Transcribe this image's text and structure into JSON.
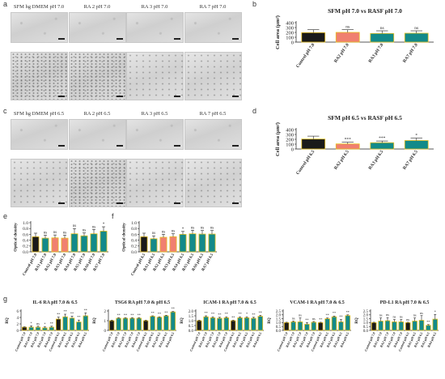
{
  "panel_letters": [
    "a",
    "b",
    "c",
    "d",
    "e",
    "f",
    "g"
  ],
  "row_a_headers": [
    "SFM hg DMEM pH 7.0",
    "RA 2 pH 7.0",
    "RA 3 pH 7.0",
    "RA 7 pH 7.0"
  ],
  "row_c_headers": [
    "SFM hg DMEM pH 6.5",
    "RA 2 pH 6.5",
    "RA 3 pH 6.5",
    "RA 7 pH 6.5"
  ],
  "colors": {
    "control": "#1a1a1a",
    "ra2": "#f08070",
    "teal": "#138a8a",
    "yellow": "#e8c020"
  },
  "chart_data": [
    {
      "id": "b",
      "type": "bar",
      "title": "SFM pH 7.0 vs RASF pH 7.0",
      "categories": [
        "Control pH 7.0",
        "RA2 pH 7.0",
        "RA3 pH 7.0",
        "RA7 pH 7.0"
      ],
      "values": [
        195,
        200,
        178,
        183
      ],
      "errors": [
        60,
        55,
        55,
        50
      ],
      "sig": [
        "",
        "ns",
        "ns",
        "ns"
      ],
      "ylabel": "Cell area (μm²)",
      "yticks": [
        "0",
        "100",
        "200",
        "300",
        "400"
      ],
      "ylim": [
        0,
        400
      ]
    },
    {
      "id": "d",
      "type": "bar",
      "title": "SFM pH 6.5 vs RASF pH 6.5",
      "categories": [
        "Control pH 6.5",
        "RA2 pH 6.5",
        "RA3 pH 6.5",
        "RA7 pH 6.5"
      ],
      "values": [
        205,
        105,
        130,
        175
      ],
      "errors": [
        60,
        35,
        35,
        50
      ],
      "sig": [
        "",
        "***",
        "***",
        "*"
      ],
      "ylabel": "Cell area (μm²)",
      "yticks": [
        "0",
        "100",
        "200",
        "300",
        "400"
      ],
      "ylim": [
        0,
        400
      ]
    },
    {
      "id": "e",
      "type": "bar",
      "categories": [
        "Control pH 7.0",
        "RA1 pH 7.0",
        "RA2 pH 7.0",
        "RA3 pH 7.0",
        "RA4 pH 7.0",
        "RA5 pH 7.0",
        "RA6 pH 7.0",
        "RA7 pH 7.0"
      ],
      "values": [
        0.52,
        0.47,
        0.48,
        0.47,
        0.62,
        0.55,
        0.62,
        0.71
      ],
      "errors": [
        0.12,
        0.1,
        0.1,
        0.1,
        0.18,
        0.1,
        0.15,
        0.15
      ],
      "sig": [
        "",
        "ns",
        "ns",
        "ns",
        "ns",
        "ns",
        "ns",
        "*"
      ],
      "ylabel": "Optical density",
      "yticks": [
        "0.0",
        "0.2",
        "0.4",
        "0.6",
        "0.8",
        "1.0"
      ],
      "ylim": [
        0,
        1.0
      ]
    },
    {
      "id": "f",
      "type": "bar",
      "categories": [
        "Control pH 6.5",
        "RA1 pH 6.5",
        "RA2 pH 6.5",
        "RA3 pH 6.5",
        "RA4 pH 6.5",
        "RA5 pH 6.5",
        "RA6 pH 6.5",
        "RA7 pH 6.5"
      ],
      "values": [
        0.52,
        0.45,
        0.5,
        0.52,
        0.6,
        0.62,
        0.61,
        0.61
      ],
      "errors": [
        0.12,
        0.1,
        0.1,
        0.1,
        0.1,
        0.12,
        0.12,
        0.12
      ],
      "sig": [
        "",
        "ns",
        "ns",
        "ns",
        "*",
        "ns",
        "ns",
        "ns"
      ],
      "ylabel": "Optical density",
      "yticks": [
        "0.0",
        "0.2",
        "0.4",
        "0.6",
        "0.8",
        "1.0"
      ],
      "ylim": [
        0,
        1.0
      ]
    },
    {
      "id": "g1",
      "type": "bar",
      "title": "IL-6 RA pH 7.0 & 6.5",
      "ylabel": "RQ",
      "yticks": [
        "0",
        "2",
        "4",
        "6"
      ],
      "ylim": [
        0,
        6
      ],
      "categories": [
        "Control pH 7.0",
        "RA1 pH 7.0",
        "RA2 pH 7.0",
        "RA3 pH 7.0",
        "RA4 pH 7.0",
        "Control pH 6.5",
        "RA1 pH 6.5",
        "RA2 pH 6.5",
        "RA3 pH 6.5",
        "RA4 pH 6.5"
      ],
      "values": [
        1.0,
        1.0,
        1.0,
        0.8,
        1.0,
        3.5,
        4.2,
        3.8,
        2.6,
        4.5
      ],
      "errors": [
        0.1,
        0.4,
        0.3,
        0.3,
        0.3,
        0.6,
        0.8,
        0.6,
        0.6,
        0.9
      ],
      "sig": [
        "",
        "*",
        "ns",
        "*",
        "**",
        "**",
        "**",
        "**",
        "**",
        "**"
      ]
    },
    {
      "id": "g2",
      "type": "bar",
      "title": "TSG6 RA pH 7.0 & pH 6.5",
      "ylabel": "RQ",
      "yticks": [
        "0",
        "1",
        "2"
      ],
      "ylim": [
        0,
        2
      ],
      "categories": [
        "Control pH 7.0",
        "RA1 pH 7.0",
        "RA2 pH 7.0",
        "RA3 pH 7.0",
        "RA4 pH 7.0",
        "Control pH 6.5",
        "RA1 pH 6.5",
        "RA2 pH 6.5",
        "RA3 pH 6.5",
        "RA4 pH 6.5"
      ],
      "values": [
        1.0,
        1.25,
        1.25,
        1.25,
        1.25,
        1.0,
        1.45,
        1.35,
        1.5,
        1.9
      ],
      "errors": [
        0.05,
        0.05,
        0.05,
        0.05,
        0.05,
        0.05,
        0.05,
        0.05,
        0.05,
        0.05
      ],
      "sig": [
        "",
        "**",
        "**",
        "**",
        "**",
        "",
        "**",
        "**",
        "**",
        "**"
      ]
    },
    {
      "id": "g3",
      "type": "bar",
      "title": "ICAM-1 RA pH 7.0 & 6.5",
      "ylabel": "RQ",
      "yticks": [
        "0.0",
        "0.5",
        "1.0",
        "1.5",
        "2.0"
      ],
      "ylim": [
        0,
        2
      ],
      "categories": [
        "Control pH 7.0",
        "RA1 pH 7.0",
        "RA2 pH 7.0",
        "RA3 pH 7.0",
        "RA4 pH 7.0",
        "Control pH 6.5",
        "RA1 pH 6.5",
        "RA2 pH 6.5",
        "RA3 pH 6.5",
        "RA4 pH 6.5"
      ],
      "values": [
        1.0,
        1.4,
        1.3,
        1.25,
        1.3,
        1.0,
        1.3,
        1.3,
        1.25,
        1.45
      ],
      "errors": [
        0.05,
        0.1,
        0.1,
        0.1,
        0.1,
        0.05,
        0.1,
        0.1,
        0.1,
        0.1
      ],
      "sig": [
        "",
        "**",
        "**",
        "**",
        "**",
        "**",
        "**",
        "*",
        "**",
        "**"
      ]
    },
    {
      "id": "g4",
      "type": "bar",
      "title": "VCAM-1 RA pH 7.0 & 6.5",
      "ylabel": "RQ",
      "yticks": [
        "0.0",
        "0.5",
        "1.0",
        "1.5",
        "2.0",
        "2.5"
      ],
      "ylim": [
        0,
        2.5
      ],
      "categories": [
        "Control pH 7.0",
        "RA1 pH 7.0",
        "RA2 pH 7.0",
        "RA3 pH 7.0",
        "RA4 pH 7.0",
        "Control pH 6.5",
        "RA1 pH 6.5",
        "RA2 pH 6.5",
        "RA3 pH 6.5",
        "RA4 pH 6.5"
      ],
      "values": [
        1.0,
        1.1,
        1.1,
        0.8,
        1.05,
        1.0,
        1.5,
        1.75,
        1.1,
        1.9
      ],
      "errors": [
        0.05,
        0.1,
        0.5,
        0.2,
        0.1,
        0.05,
        0.1,
        0.1,
        0.3,
        0.1
      ],
      "sig": [
        "",
        "ns",
        "ns",
        "**",
        "ns",
        "**",
        "**",
        "**",
        "**",
        "**"
      ]
    },
    {
      "id": "g5",
      "type": "bar",
      "title": "PD-L1 RA pH 7.0 & 6.5",
      "ylabel": "RQ",
      "yticks": [
        "0.0",
        "0.5",
        "1.0",
        "1.5",
        "2.0",
        "2.5"
      ],
      "ylim": [
        0,
        2.5
      ],
      "categories": [
        "Control pH 7.0",
        "RA1 pH 7.0",
        "RA2 pH 7.0",
        "RA3 pH 7.0",
        "RA4 pH 7.0",
        "Control pH 6.5",
        "RA1 pH 6.5",
        "RA2 pH 6.5",
        "RA3 pH 6.5",
        "RA4 pH 6.5"
      ],
      "values": [
        1.0,
        1.2,
        1.25,
        1.1,
        1.1,
        1.0,
        1.2,
        1.3,
        0.65,
        1.45
      ],
      "errors": [
        0.05,
        0.4,
        0.4,
        0.3,
        0.3,
        0.05,
        0.4,
        0.6,
        0.1,
        0.6
      ],
      "sig": [
        "",
        "ns",
        "ns",
        "ns",
        "ns",
        "ns",
        "ns",
        "ns",
        "**",
        "*"
      ]
    }
  ]
}
